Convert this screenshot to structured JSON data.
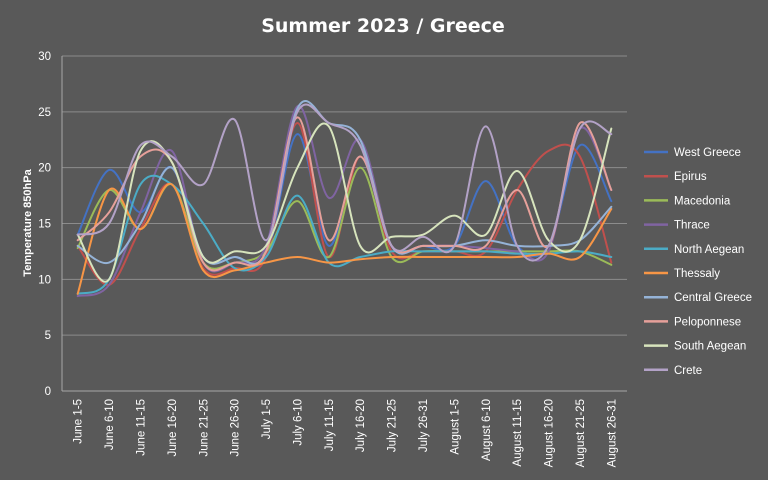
{
  "chart_data": {
    "type": "line",
    "title": "Summer 2023 / Greece",
    "xlabel": "",
    "ylabel": "Temperature 850hPa",
    "ylim": [
      0,
      30
    ],
    "yticks": [
      0,
      5,
      10,
      15,
      20,
      25,
      30
    ],
    "grid": true,
    "legend_position": "right",
    "categories": [
      "June 1-5",
      "June 6-10",
      "June 11-15",
      "June 16-20",
      "June 21-25",
      "June 26-30",
      "July 1-5",
      "July 6-10",
      "July 11-15",
      "July 16-20",
      "July 21-25",
      "July 26-31",
      "August 1-5",
      "August 6-10",
      "August 11-15",
      "August 16-20",
      "August 21-25",
      "August 26-31"
    ],
    "series": [
      {
        "name": "West Greece",
        "color": "#4472C4",
        "values": [
          14.0,
          19.8,
          16.0,
          20.0,
          12.0,
          12.0,
          12.0,
          23.0,
          13.0,
          21.0,
          13.0,
          13.0,
          13.0,
          18.8,
          13.0,
          13.0,
          22.0,
          17.0
        ]
      },
      {
        "name": "Epirus",
        "color": "#C0504D",
        "values": [
          13.0,
          9.5,
          14.5,
          18.5,
          11.0,
          11.0,
          12.0,
          24.0,
          12.0,
          21.0,
          12.5,
          12.5,
          12.5,
          12.5,
          18.0,
          21.5,
          21.0,
          11.5
        ]
      },
      {
        "name": "Macedonia",
        "color": "#9BBB59",
        "values": [
          12.8,
          18.0,
          14.5,
          18.5,
          11.5,
          11.5,
          12.5,
          17.0,
          12.0,
          20.0,
          12.0,
          12.5,
          12.5,
          12.5,
          12.5,
          12.5,
          12.5,
          11.3
        ]
      },
      {
        "name": "Thrace",
        "color": "#8064A2",
        "values": [
          8.5,
          9.5,
          16.0,
          21.5,
          11.5,
          11.5,
          13.0,
          25.5,
          17.3,
          22.5,
          13.0,
          13.0,
          13.0,
          12.8,
          12.5,
          12.5,
          23.5,
          18.0
        ]
      },
      {
        "name": "North Aegean",
        "color": "#4BACC6",
        "values": [
          8.7,
          10.0,
          18.5,
          18.5,
          15.0,
          11.0,
          12.0,
          17.5,
          11.5,
          12.0,
          12.5,
          12.5,
          12.5,
          12.5,
          12.3,
          12.3,
          12.5,
          12.0
        ]
      },
      {
        "name": "Thessaly",
        "color": "#F79646",
        "values": [
          8.7,
          18.0,
          14.5,
          18.5,
          10.8,
          10.8,
          11.5,
          12.0,
          11.5,
          11.8,
          12.0,
          12.0,
          12.0,
          12.0,
          12.0,
          12.3,
          12.0,
          16.3
        ]
      },
      {
        "name": "Central Greece",
        "color": "#95B3D7",
        "values": [
          13.0,
          11.5,
          15.0,
          20.0,
          12.0,
          12.0,
          12.5,
          25.3,
          24.0,
          22.5,
          13.0,
          13.0,
          13.0,
          13.5,
          13.0,
          13.0,
          13.5,
          16.5
        ]
      },
      {
        "name": "Peloponnese",
        "color": "#E6A09A",
        "values": [
          13.5,
          16.0,
          21.0,
          20.5,
          11.5,
          11.5,
          12.5,
          24.5,
          13.5,
          21.0,
          13.0,
          13.0,
          13.0,
          13.0,
          18.0,
          13.0,
          24.0,
          18.0
        ]
      },
      {
        "name": "South Aegean",
        "color": "#D7E4BD",
        "values": [
          14.0,
          10.0,
          21.5,
          20.5,
          12.0,
          12.5,
          13.0,
          20.0,
          23.7,
          13.0,
          13.8,
          14.0,
          15.7,
          14.0,
          19.7,
          13.5,
          13.5,
          23.5
        ]
      },
      {
        "name": "Crete",
        "color": "#B3A2C7",
        "values": [
          14.0,
          15.0,
          22.0,
          21.0,
          18.5,
          24.3,
          13.5,
          25.0,
          24.0,
          22.0,
          13.0,
          13.8,
          13.0,
          23.7,
          13.0,
          13.0,
          23.5,
          23.0
        ]
      }
    ]
  }
}
